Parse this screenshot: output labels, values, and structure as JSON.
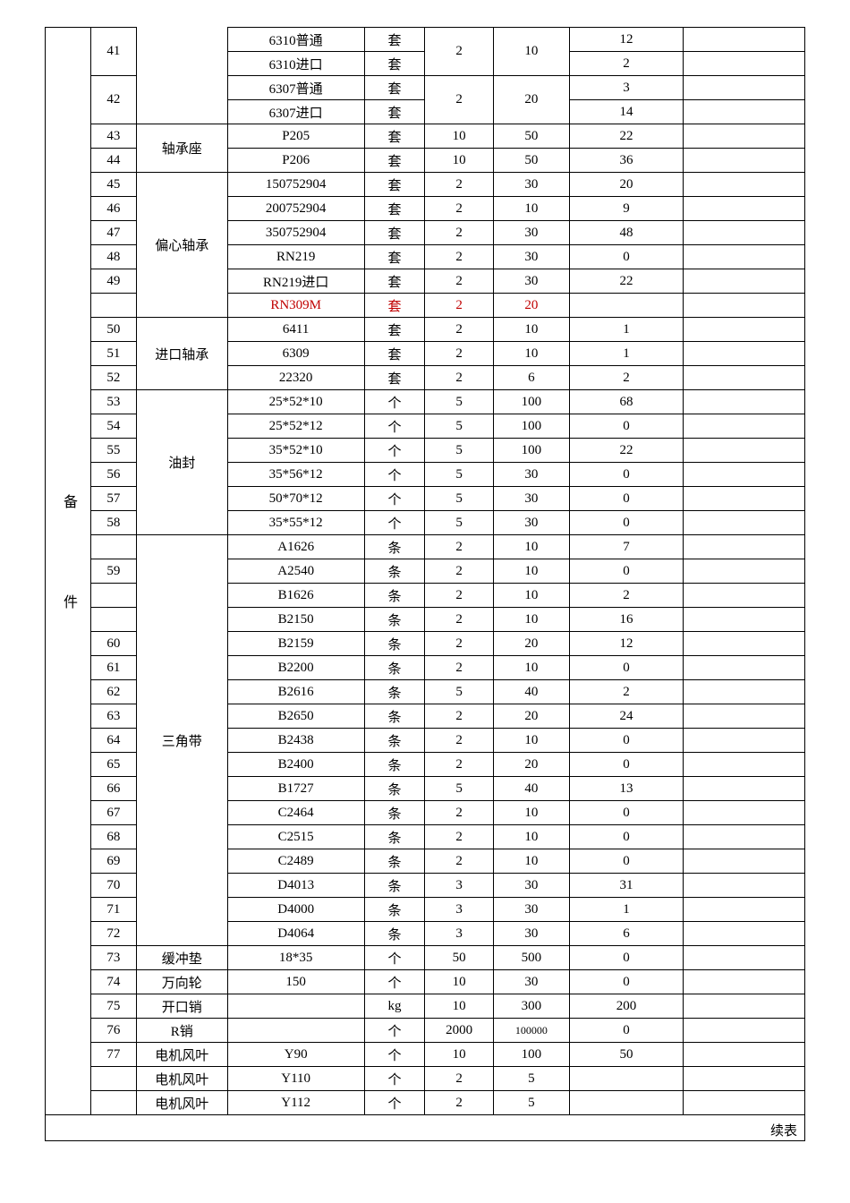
{
  "side_label": "备　件",
  "footer": "续表",
  "highlight_color": "#c00000",
  "rows": [
    {
      "no": "41",
      "cat": "",
      "spec": "6310普通",
      "unit": "套",
      "c1": "2",
      "c2": "10",
      "c3": "12",
      "catSpan": 0,
      "noSpan": 2,
      "c1Span": 2,
      "c2Span": 2
    },
    {
      "no": "",
      "cat": "",
      "spec": "6310进口",
      "unit": "套",
      "c1": "",
      "c2": "",
      "c3": "2",
      "catSpan": 0,
      "noSpan": 0,
      "c1Span": 0,
      "c2Span": 0
    },
    {
      "no": "42",
      "cat": "",
      "spec": "6307普通",
      "unit": "套",
      "c1": "2",
      "c2": "20",
      "c3": "3",
      "catSpan": 0,
      "noSpan": 2,
      "c1Span": 2,
      "c2Span": 2
    },
    {
      "no": "",
      "cat": "",
      "spec": "6307进口",
      "unit": "套",
      "c1": "",
      "c2": "",
      "c3": "14",
      "catSpan": 0,
      "noSpan": 0,
      "c1Span": 0,
      "c2Span": 0
    },
    {
      "no": "43",
      "cat": "轴承座",
      "spec": "P205",
      "unit": "套",
      "c1": "10",
      "c2": "50",
      "c3": "22",
      "catSpan": 2,
      "noSpan": 1,
      "c1Span": 1,
      "c2Span": 1
    },
    {
      "no": "44",
      "cat": "",
      "spec": "P206",
      "unit": "套",
      "c1": "10",
      "c2": "50",
      "c3": "36",
      "catSpan": 0,
      "noSpan": 1,
      "c1Span": 1,
      "c2Span": 1
    },
    {
      "no": "45",
      "cat": "偏心轴承",
      "spec": "150752904",
      "unit": "套",
      "c1": "2",
      "c2": "30",
      "c3": "20",
      "catSpan": 6,
      "noSpan": 1,
      "c1Span": 1,
      "c2Span": 1
    },
    {
      "no": "46",
      "cat": "",
      "spec": "200752904",
      "unit": "套",
      "c1": "2",
      "c2": "10",
      "c3": "9",
      "catSpan": 0,
      "noSpan": 1,
      "c1Span": 1,
      "c2Span": 1
    },
    {
      "no": "47",
      "cat": "",
      "spec": "350752904",
      "unit": "套",
      "c1": "2",
      "c2": "30",
      "c3": "48",
      "catSpan": 0,
      "noSpan": 1,
      "c1Span": 1,
      "c2Span": 1
    },
    {
      "no": "48",
      "cat": "",
      "spec": "RN219",
      "unit": "套",
      "c1": "2",
      "c2": "30",
      "c3": "0",
      "catSpan": 0,
      "noSpan": 1,
      "c1Span": 1,
      "c2Span": 1
    },
    {
      "no": "49",
      "cat": "",
      "spec": "RN219进口",
      "unit": "套",
      "c1": "2",
      "c2": "30",
      "c3": "22",
      "catSpan": 0,
      "noSpan": 1,
      "c1Span": 1,
      "c2Span": 1
    },
    {
      "no": "",
      "cat": "",
      "spec": "RN309M",
      "unit": "套",
      "c1": "2",
      "c2": "20",
      "c3": "",
      "catSpan": 0,
      "noSpan": 1,
      "c1Span": 1,
      "c2Span": 1,
      "red": true
    },
    {
      "no": "50",
      "cat": "进口轴承",
      "spec": "6411",
      "unit": "套",
      "c1": "2",
      "c2": "10",
      "c3": "1",
      "catSpan": 3,
      "noSpan": 1,
      "c1Span": 1,
      "c2Span": 1
    },
    {
      "no": "51",
      "cat": "",
      "spec": "6309",
      "unit": "套",
      "c1": "2",
      "c2": "10",
      "c3": "1",
      "catSpan": 0,
      "noSpan": 1,
      "c1Span": 1,
      "c2Span": 1
    },
    {
      "no": "52",
      "cat": "",
      "spec": "22320",
      "unit": "套",
      "c1": "2",
      "c2": "6",
      "c3": "2",
      "catSpan": 0,
      "noSpan": 1,
      "c1Span": 1,
      "c2Span": 1
    },
    {
      "no": "53",
      "cat": "油封",
      "spec": "25*52*10",
      "unit": "个",
      "c1": "5",
      "c2": "100",
      "c3": "68",
      "catSpan": 6,
      "noSpan": 1,
      "c1Span": 1,
      "c2Span": 1
    },
    {
      "no": "54",
      "cat": "",
      "spec": "25*52*12",
      "unit": "个",
      "c1": "5",
      "c2": "100",
      "c3": "0",
      "catSpan": 0,
      "noSpan": 1,
      "c1Span": 1,
      "c2Span": 1
    },
    {
      "no": "55",
      "cat": "",
      "spec": "35*52*10",
      "unit": "个",
      "c1": "5",
      "c2": "100",
      "c3": "22",
      "catSpan": 0,
      "noSpan": 1,
      "c1Span": 1,
      "c2Span": 1
    },
    {
      "no": "56",
      "cat": "",
      "spec": "35*56*12",
      "unit": "个",
      "c1": "5",
      "c2": "30",
      "c3": "0",
      "catSpan": 0,
      "noSpan": 1,
      "c1Span": 1,
      "c2Span": 1
    },
    {
      "no": "57",
      "cat": "",
      "spec": "50*70*12",
      "unit": "个",
      "c1": "5",
      "c2": "30",
      "c3": "0",
      "catSpan": 0,
      "noSpan": 1,
      "c1Span": 1,
      "c2Span": 1
    },
    {
      "no": "58",
      "cat": "",
      "spec": "35*55*12",
      "unit": "个",
      "c1": "5",
      "c2": "30",
      "c3": "0",
      "catSpan": 0,
      "noSpan": 1,
      "c1Span": 1,
      "c2Span": 1
    },
    {
      "no": "",
      "cat": "三角带",
      "spec": "A1626",
      "unit": "条",
      "c1": "2",
      "c2": "10",
      "c3": "7",
      "catSpan": 17,
      "noSpan": 1,
      "c1Span": 1,
      "c2Span": 1
    },
    {
      "no": "59",
      "cat": "",
      "spec": "A2540",
      "unit": "条",
      "c1": "2",
      "c2": "10",
      "c3": "0",
      "catSpan": 0,
      "noSpan": 1,
      "c1Span": 1,
      "c2Span": 1
    },
    {
      "no": "",
      "cat": "",
      "spec": "B1626",
      "unit": "条",
      "c1": "2",
      "c2": "10",
      "c3": "2",
      "catSpan": 0,
      "noSpan": 1,
      "c1Span": 1,
      "c2Span": 1
    },
    {
      "no": "",
      "cat": "",
      "spec": "B2150",
      "unit": "条",
      "c1": "2",
      "c2": "10",
      "c3": "16",
      "catSpan": 0,
      "noSpan": 1,
      "c1Span": 1,
      "c2Span": 1
    },
    {
      "no": "60",
      "cat": "",
      "spec": "B2159",
      "unit": "条",
      "c1": "2",
      "c2": "20",
      "c3": "12",
      "catSpan": 0,
      "noSpan": 1,
      "c1Span": 1,
      "c2Span": 1
    },
    {
      "no": "61",
      "cat": "",
      "spec": "B2200",
      "unit": "条",
      "c1": "2",
      "c2": "10",
      "c3": "0",
      "catSpan": 0,
      "noSpan": 1,
      "c1Span": 1,
      "c2Span": 1
    },
    {
      "no": "62",
      "cat": "",
      "spec": "B2616",
      "unit": "条",
      "c1": "5",
      "c2": "40",
      "c3": "2",
      "catSpan": 0,
      "noSpan": 1,
      "c1Span": 1,
      "c2Span": 1
    },
    {
      "no": "63",
      "cat": "",
      "spec": "B2650",
      "unit": "条",
      "c1": "2",
      "c2": "20",
      "c3": "24",
      "catSpan": 0,
      "noSpan": 1,
      "c1Span": 1,
      "c2Span": 1
    },
    {
      "no": "64",
      "cat": "",
      "spec": "B2438",
      "unit": "条",
      "c1": "2",
      "c2": "10",
      "c3": "0",
      "catSpan": 0,
      "noSpan": 1,
      "c1Span": 1,
      "c2Span": 1
    },
    {
      "no": "65",
      "cat": "",
      "spec": "B2400",
      "unit": "条",
      "c1": "2",
      "c2": "20",
      "c3": "0",
      "catSpan": 0,
      "noSpan": 1,
      "c1Span": 1,
      "c2Span": 1
    },
    {
      "no": "66",
      "cat": "",
      "spec": "B1727",
      "unit": "条",
      "c1": "5",
      "c2": "40",
      "c3": "13",
      "catSpan": 0,
      "noSpan": 1,
      "c1Span": 1,
      "c2Span": 1
    },
    {
      "no": "67",
      "cat": "",
      "spec": "C2464",
      "unit": "条",
      "c1": "2",
      "c2": "10",
      "c3": "0",
      "catSpan": 0,
      "noSpan": 1,
      "c1Span": 1,
      "c2Span": 1
    },
    {
      "no": "68",
      "cat": "",
      "spec": "C2515",
      "unit": "条",
      "c1": "2",
      "c2": "10",
      "c3": "0",
      "catSpan": 0,
      "noSpan": 1,
      "c1Span": 1,
      "c2Span": 1
    },
    {
      "no": "69",
      "cat": "",
      "spec": "C2489",
      "unit": "条",
      "c1": "2",
      "c2": "10",
      "c3": "0",
      "catSpan": 0,
      "noSpan": 1,
      "c1Span": 1,
      "c2Span": 1
    },
    {
      "no": "70",
      "cat": "",
      "spec": "D4013",
      "unit": "条",
      "c1": "3",
      "c2": "30",
      "c3": "31",
      "catSpan": 0,
      "noSpan": 1,
      "c1Span": 1,
      "c2Span": 1
    },
    {
      "no": "71",
      "cat": "",
      "spec": "D4000",
      "unit": "条",
      "c1": "3",
      "c2": "30",
      "c3": "1",
      "catSpan": 0,
      "noSpan": 1,
      "c1Span": 1,
      "c2Span": 1
    },
    {
      "no": "72",
      "cat": "",
      "spec": "D4064",
      "unit": "条",
      "c1": "3",
      "c2": "30",
      "c3": "6",
      "catSpan": 0,
      "noSpan": 1,
      "c1Span": 1,
      "c2Span": 1
    },
    {
      "no": "73",
      "cat": "缓冲垫",
      "spec": "18*35",
      "unit": "个",
      "c1": "50",
      "c2": "500",
      "c3": "0",
      "catSpan": 1,
      "noSpan": 1,
      "c1Span": 1,
      "c2Span": 1
    },
    {
      "no": "74",
      "cat": "万向轮",
      "spec": "150",
      "unit": "个",
      "c1": "10",
      "c2": "30",
      "c3": "0",
      "catSpan": 1,
      "noSpan": 1,
      "c1Span": 1,
      "c2Span": 1
    },
    {
      "no": "75",
      "cat": "开口销",
      "spec": "",
      "unit": "kg",
      "c1": "10",
      "c2": "300",
      "c3": "200",
      "catSpan": 1,
      "noSpan": 1,
      "c1Span": 1,
      "c2Span": 1
    },
    {
      "no": "76",
      "cat": "R销",
      "spec": "",
      "unit": "个",
      "c1": "2000",
      "c2": "100000",
      "c3": "0",
      "catSpan": 1,
      "noSpan": 1,
      "c1Span": 1,
      "c2Span": 1,
      "smallC2": true
    },
    {
      "no": "77",
      "cat": "电机风叶",
      "spec": "Y90",
      "unit": "个",
      "c1": "10",
      "c2": "100",
      "c3": "50",
      "catSpan": 1,
      "noSpan": 1,
      "c1Span": 1,
      "c2Span": 1
    },
    {
      "no": "",
      "cat": "电机风叶",
      "spec": "Y110",
      "unit": "个",
      "c1": "2",
      "c2": "5",
      "c3": "",
      "catSpan": 1,
      "noSpan": 1,
      "c1Span": 1,
      "c2Span": 1
    },
    {
      "no": "",
      "cat": "电机风叶",
      "spec": "Y112",
      "unit": "个",
      "c1": "2",
      "c2": "5",
      "c3": "",
      "catSpan": 1,
      "noSpan": 1,
      "c1Span": 1,
      "c2Span": 1
    }
  ]
}
